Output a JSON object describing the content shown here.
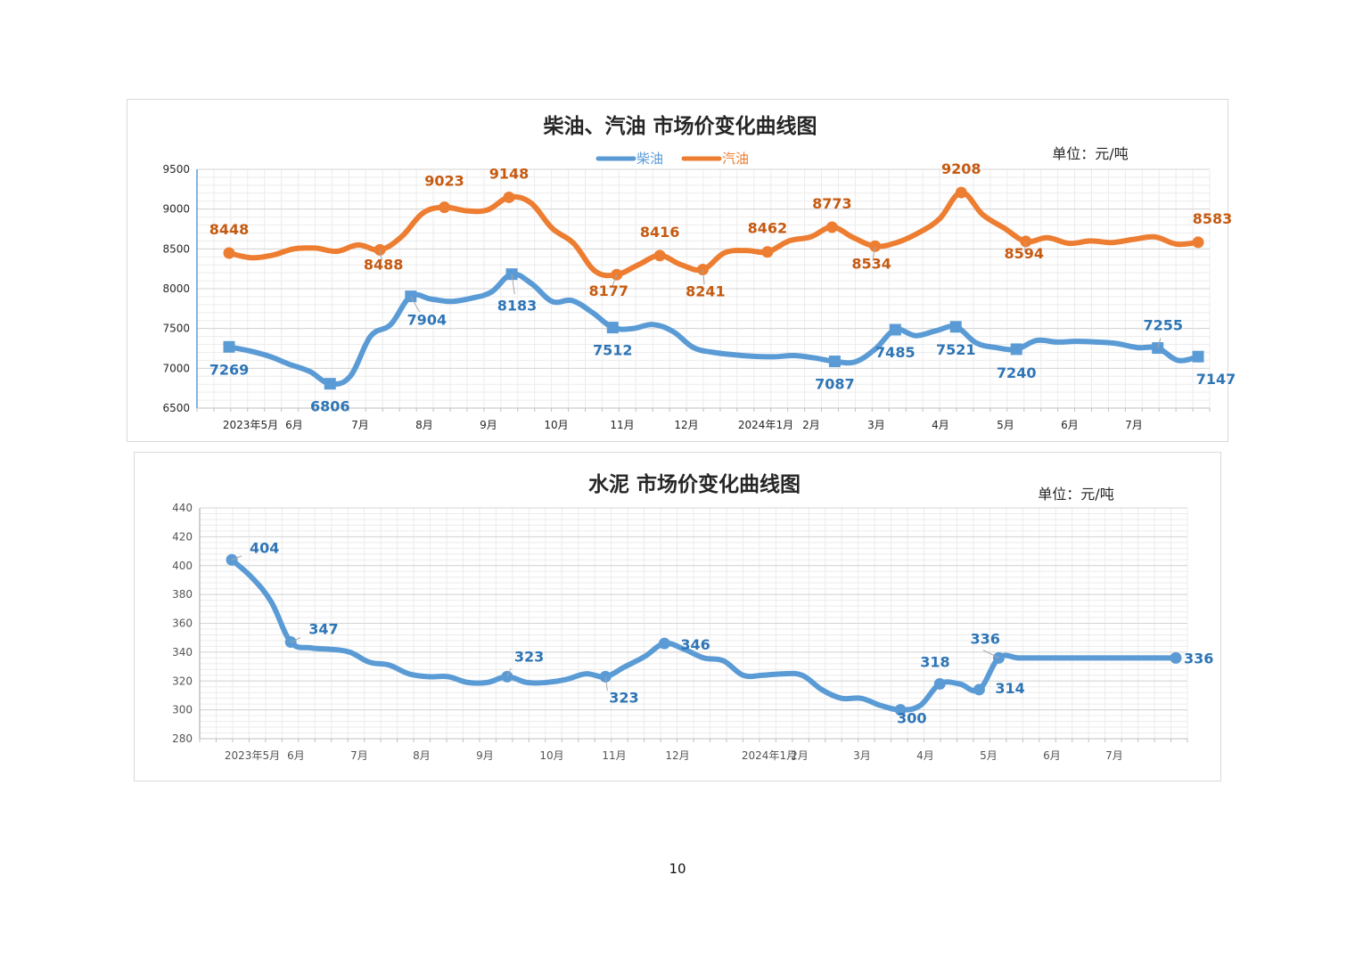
{
  "page_number": "10",
  "chart_data": [
    {
      "type": "line",
      "title": "柴油、汽油 市场价变化曲线图",
      "unit_label": "单位：元/吨",
      "ylim": [
        6500,
        9500
      ],
      "y_ticks": [
        6500,
        7000,
        7500,
        8000,
        8500,
        9000,
        9500
      ],
      "x_tick_labels": [
        "2023年5月",
        "6月",
        "7月",
        "8月",
        "9月",
        "10月",
        "11月",
        "12月",
        "2024年1月",
        "2月",
        "3月",
        "4月",
        "5月",
        "6月",
        "7月"
      ],
      "legend_position": "top-center",
      "grid": true,
      "series": [
        {
          "name": "柴油",
          "color": "#5B9BD5",
          "label_color": "#2E75B6",
          "marker": "square",
          "values": [
            7269,
            7220,
            7150,
            7050,
            6960,
            6806,
            6900,
            7400,
            7550,
            7904,
            7870,
            7840,
            7880,
            7960,
            8183,
            8060,
            7840,
            7850,
            7700,
            7512,
            7500,
            7550,
            7460,
            7260,
            7200,
            7170,
            7150,
            7145,
            7160,
            7130,
            7087,
            7080,
            7240,
            7485,
            7410,
            7470,
            7521,
            7320,
            7260,
            7240,
            7350,
            7330,
            7340,
            7330,
            7310,
            7260,
            7255,
            7100,
            7147
          ],
          "labeled": [
            {
              "index": 0,
              "label": "7269"
            },
            {
              "index": 5,
              "label": "6806"
            },
            {
              "index": 9,
              "label": "7904"
            },
            {
              "index": 14,
              "label": "8183"
            },
            {
              "index": 19,
              "label": "7512"
            },
            {
              "index": 30,
              "label": "7087"
            },
            {
              "index": 33,
              "label": "7485"
            },
            {
              "index": 36,
              "label": "7521"
            },
            {
              "index": 39,
              "label": "7240"
            },
            {
              "index": 46,
              "label": "7255"
            },
            {
              "index": 48,
              "label": "7147"
            }
          ]
        },
        {
          "name": "汽油",
          "color": "#ED7D31",
          "label_color": "#C55A11",
          "marker": "circle",
          "values": [
            8448,
            8390,
            8420,
            8500,
            8510,
            8470,
            8550,
            8488,
            8650,
            8950,
            9023,
            8980,
            8990,
            9148,
            9080,
            8760,
            8570,
            8220,
            8177,
            8300,
            8416,
            8300,
            8241,
            8450,
            8480,
            8462,
            8600,
            8650,
            8773,
            8640,
            8534,
            8580,
            8700,
            8880,
            9208,
            8930,
            8760,
            8594,
            8640,
            8570,
            8600,
            8580,
            8620,
            8650,
            8560,
            8583
          ],
          "labeled": [
            {
              "index": 0,
              "label": "8448"
            },
            {
              "index": 7,
              "label": "8488"
            },
            {
              "index": 10,
              "label": "9023"
            },
            {
              "index": 13,
              "label": "9148"
            },
            {
              "index": 18,
              "label": "8177"
            },
            {
              "index": 20,
              "label": "8416"
            },
            {
              "index": 22,
              "label": "8241"
            },
            {
              "index": 25,
              "label": "8462"
            },
            {
              "index": 28,
              "label": "8773"
            },
            {
              "index": 30,
              "label": "8534"
            },
            {
              "index": 34,
              "label": "9208"
            },
            {
              "index": 37,
              "label": "8594"
            },
            {
              "index": 45,
              "label": "8583"
            }
          ]
        }
      ]
    },
    {
      "type": "line",
      "title": "水泥 市场价变化曲线图",
      "unit_label": "单位：元/吨",
      "ylim": [
        280,
        440
      ],
      "y_ticks": [
        280,
        300,
        320,
        340,
        360,
        380,
        400,
        420,
        440
      ],
      "x_tick_labels": [
        "2023年5月",
        "6月",
        "7月",
        "8月",
        "9月",
        "10月",
        "11月",
        "12月",
        "2024年1月",
        "2月",
        "3月",
        "4月",
        "5月",
        "6月",
        "7月"
      ],
      "grid": true,
      "series": [
        {
          "name": "",
          "color": "#5B9BD5",
          "label_color": "#2E75B6",
          "marker": "circle",
          "values": [
            404,
            392,
            375,
            347,
            343,
            342,
            340,
            333,
            331,
            325,
            323,
            323,
            319,
            319,
            323,
            319,
            319,
            321,
            325,
            323,
            330,
            337,
            346,
            342,
            336,
            334,
            324,
            324,
            325,
            324,
            314,
            308,
            308,
            303,
            300,
            303,
            318,
            318,
            314,
            336,
            336,
            336,
            336,
            336,
            336,
            336,
            336,
            336,
            336
          ],
          "labeled": [
            {
              "index": 0,
              "label": "404"
            },
            {
              "index": 3,
              "label": "347"
            },
            {
              "index": 14,
              "label": "323"
            },
            {
              "index": 19,
              "label": "323"
            },
            {
              "index": 22,
              "label": "346"
            },
            {
              "index": 34,
              "label": "300"
            },
            {
              "index": 36,
              "label": "318"
            },
            {
              "index": 38,
              "label": "314"
            },
            {
              "index": 39,
              "label": "336"
            },
            {
              "index": 48,
              "label": "336"
            }
          ]
        }
      ]
    }
  ]
}
